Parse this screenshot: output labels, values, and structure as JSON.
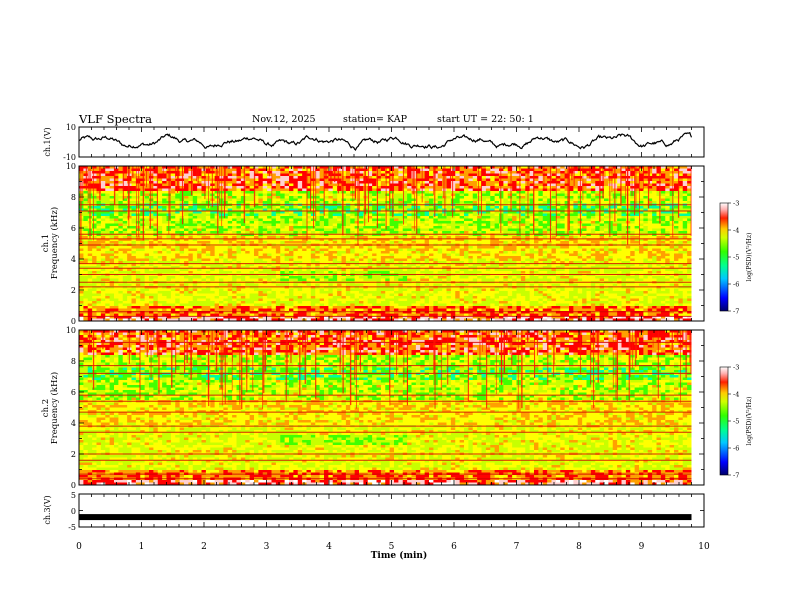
{
  "header": {
    "title": "VLF Spectra",
    "date": "Nov.12, 2025",
    "station": "station= KAP",
    "start": "start  UT =   22: 50: 1"
  },
  "colors": {
    "series_line": "#000000",
    "colormap": [
      "#00008b",
      "#0000ff",
      "#00c0ff",
      "#00ffa0",
      "#40ff00",
      "#c8ff00",
      "#ffff00",
      "#ffa000",
      "#ff0000",
      "#ffd0d0",
      "#ffffff"
    ]
  },
  "chart_data": [
    {
      "type": "line",
      "id": "ch1-waveform",
      "ylabel": "ch.1(V)",
      "ylim": [
        -10,
        10
      ],
      "yticklabels": [
        "10",
        "-10"
      ],
      "xlim": [
        0,
        10
      ],
      "x_end": 9.8,
      "description_values": {
        "mean": 0,
        "amplitude_range": [
          -3,
          3
        ]
      }
    },
    {
      "type": "heatmap",
      "id": "ch1-spectrogram",
      "title": "ch.1",
      "ylabel": "Frequency (kHz)",
      "ylim": [
        0,
        10
      ],
      "yticks": [
        0,
        2,
        4,
        6,
        8,
        10
      ],
      "xlim": [
        0,
        9.8
      ],
      "horizontal_lines_khz": [
        0.3,
        0.6,
        2.2,
        2.5,
        3.0,
        3.4,
        3.7,
        4.9,
        5.3,
        5.6,
        7.1,
        7.5
      ],
      "colorbar": {
        "label": "log(PSD)(V²/Hz)",
        "range": [
          -7,
          -3
        ],
        "ticks": [
          "-3",
          "-4",
          "-5",
          "-6",
          "-7"
        ]
      }
    },
    {
      "type": "heatmap",
      "id": "ch2-spectrogram",
      "title": "ch.2",
      "ylabel": "Frequency (kHz)",
      "ylim": [
        0,
        10
      ],
      "yticks": [
        0,
        2,
        4,
        6,
        8,
        10
      ],
      "xlim": [
        0,
        9.8
      ],
      "horizontal_lines_khz": [
        0.4,
        0.7,
        1.6,
        2.0,
        3.4,
        3.8,
        4.7,
        5.4,
        5.8,
        7.2,
        7.7,
        9.2
      ],
      "colorbar": {
        "label": "log(PSD)(V²/Hz)",
        "range": [
          -7,
          -3
        ],
        "ticks": [
          "-3",
          "-4",
          "-5",
          "-6",
          "-7"
        ]
      }
    },
    {
      "type": "line",
      "id": "ch3-waveform",
      "ylabel": "ch.3(V)",
      "ylim": [
        -5,
        5
      ],
      "yticklabels": [
        "5",
        "0",
        "-5"
      ],
      "xlim": [
        0,
        10
      ],
      "x_end": 9.8,
      "level": -2
    },
    {
      "type": "axis",
      "id": "time-axis",
      "xlabel": "Time (min)",
      "xticklabels": [
        "0",
        "1",
        "2",
        "3",
        "4",
        "5",
        "6",
        "7",
        "8",
        "9",
        "10"
      ]
    }
  ]
}
